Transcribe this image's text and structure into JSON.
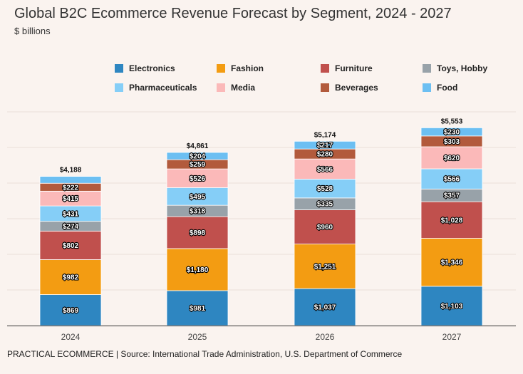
{
  "header": {
    "title": "Global B2C Ecommerce Revenue Forecast by Segment, 2024 - 2027",
    "subtitle": "$ billions"
  },
  "footer": {
    "source": "PRACTICAL ECOMMERCE | Source: International Trade Administration, U.S. Department of Commerce"
  },
  "chart_data": {
    "type": "bar",
    "stacked": true,
    "title": "Global B2C Ecommerce Revenue Forecast by Segment, 2024 - 2027",
    "subtitle": "$ billions",
    "categories": [
      "2024",
      "2025",
      "2026",
      "2027"
    ],
    "totals": [
      "$4,188",
      "$4,861",
      "$5,174",
      "$5,553"
    ],
    "ylim": [
      0,
      6000
    ],
    "grid": true,
    "legend_position": "top",
    "series": [
      {
        "name": "Electronics",
        "color": "#2e86c1",
        "values": [
          869,
          981,
          1037,
          1103
        ],
        "labels": [
          "$869",
          "$981",
          "$1,037",
          "$1,103"
        ]
      },
      {
        "name": "Fashion",
        "color": "#f39c12",
        "values": [
          982,
          1180,
          1251,
          1346
        ],
        "labels": [
          "$982",
          "$1,180",
          "$1,251",
          "$1,346"
        ]
      },
      {
        "name": "Furniture",
        "color": "#c0504d",
        "values": [
          802,
          898,
          960,
          1028
        ],
        "labels": [
          "$802",
          "$898",
          "$960",
          "$1,028"
        ]
      },
      {
        "name": "Toys, Hobby",
        "color": "#98a2a9",
        "values": [
          274,
          318,
          335,
          357
        ],
        "labels": [
          "$274",
          "$318",
          "$335",
          "$357"
        ]
      },
      {
        "name": "Pharmaceuticals",
        "color": "#85cef7",
        "values": [
          431,
          495,
          528,
          566
        ],
        "labels": [
          "$431",
          "$495",
          "$528",
          "$566"
        ]
      },
      {
        "name": "Media",
        "color": "#fbb9b9",
        "values": [
          415,
          526,
          566,
          620
        ],
        "labels": [
          "$415",
          "$526",
          "$566",
          "$620"
        ]
      },
      {
        "name": "Beverages",
        "color": "#b25a3c",
        "values": [
          222,
          259,
          280,
          303
        ],
        "labels": [
          "$222",
          "$259",
          "$280",
          "$303"
        ]
      },
      {
        "name": "Food",
        "color": "#6cbff2",
        "values": [
          193,
          204,
          217,
          230
        ],
        "labels": [
          "",
          "$204",
          "$217",
          "$230"
        ]
      }
    ]
  }
}
